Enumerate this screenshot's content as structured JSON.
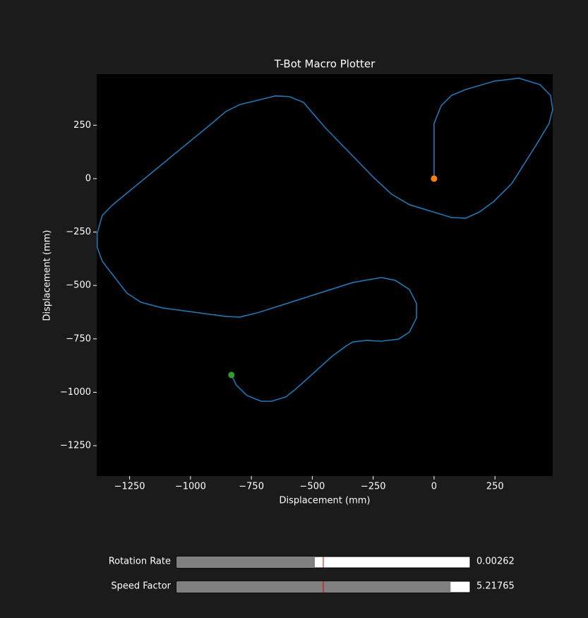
{
  "chart_data": {
    "type": "line",
    "title": "T-Bot Macro Plotter",
    "xlabel": "Displacement (mm)",
    "ylabel": "Displacement (mm)",
    "xlim": [
      -1385,
      487
    ],
    "ylim": [
      -1392,
      489
    ],
    "xticks": [
      {
        "value": -1250,
        "label": "−1250"
      },
      {
        "value": -1000,
        "label": "−1000"
      },
      {
        "value": -750,
        "label": "−750"
      },
      {
        "value": -500,
        "label": "−500"
      },
      {
        "value": -250,
        "label": "−250"
      },
      0,
      250
    ],
    "yticks": [
      250,
      0,
      {
        "value": -250,
        "label": "−250"
      },
      {
        "value": -500,
        "label": "−500"
      },
      {
        "value": -750,
        "label": "−750"
      },
      {
        "value": -1000,
        "label": "−1000"
      },
      {
        "value": -1250,
        "label": "−1250"
      }
    ],
    "series": [
      {
        "color": "#1f77b4",
        "x": [
          0,
          0,
          29,
          72,
          130,
          246,
          348,
          435,
          478,
          487,
          472,
          420,
          319,
          246,
          188,
          130,
          72,
          -101,
          -174,
          -246,
          -449,
          -536,
          -594,
          -652,
          -797,
          -855,
          -913,
          -1319,
          -1362,
          -1383,
          -1383,
          -1362,
          -1261,
          -1203,
          -1116,
          -855,
          -797,
          -725,
          -333,
          -217,
          -159,
          -101,
          -72,
          -72,
          -101,
          -145,
          -217,
          -275,
          -333,
          -362,
          -420,
          -565,
          -609,
          -667,
          -710,
          -768,
          -812,
          -832
        ],
        "values": [
          0,
          258,
          341,
          390,
          417,
          456,
          470,
          440,
          390,
          324,
          258,
          159,
          -23,
          -106,
          -155,
          -185,
          -182,
          -122,
          -73,
          3,
          241,
          357,
          384,
          387,
          347,
          314,
          258,
          -122,
          -172,
          -255,
          -321,
          -387,
          -536,
          -579,
          -605,
          -645,
          -648,
          -628,
          -486,
          -463,
          -476,
          -519,
          -585,
          -651,
          -718,
          -751,
          -761,
          -757,
          -764,
          -784,
          -833,
          -982,
          -1022,
          -1042,
          -1042,
          -1015,
          -966,
          -919
        ]
      }
    ],
    "start": {
      "x": 0,
      "y": 0,
      "color": "#ff7f0e"
    },
    "end": {
      "x": -832,
      "y": -919,
      "color": "#2ca02c"
    },
    "sliders": [
      {
        "label": "Rotation Rate",
        "value": 0.00262,
        "min": 0,
        "max": 0.00556,
        "init": 0.00278
      },
      {
        "label": "Speed Factor",
        "value": 5.21765,
        "min": 0,
        "max": 5.59,
        "init": 2.795
      }
    ]
  }
}
